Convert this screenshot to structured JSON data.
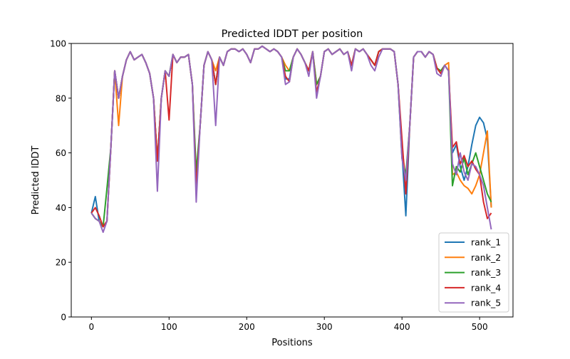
{
  "chart_data": {
    "type": "line",
    "title": "Predicted lDDT per position",
    "xlabel": "Positions",
    "ylabel": "Predicted lDDT",
    "xlim": [
      -26,
      543
    ],
    "ylim": [
      0,
      100
    ],
    "xticks": [
      0,
      100,
      200,
      300,
      400,
      500
    ],
    "yticks": [
      0,
      20,
      40,
      60,
      80,
      100
    ],
    "grid": false,
    "legend_position": "lower-right",
    "x_step": 5,
    "series": [
      {
        "name": "rank_1",
        "color": "#1f77b4",
        "values": [
          38,
          44,
          35,
          33,
          35,
          62,
          90,
          80,
          88,
          94,
          97,
          94,
          95,
          96,
          93,
          89,
          80,
          57,
          80,
          90,
          88,
          96,
          93,
          95,
          95,
          96,
          85,
          50,
          70,
          92,
          97,
          94,
          85,
          95,
          92,
          97,
          98,
          98,
          97,
          98,
          96,
          93,
          98,
          98,
          99,
          98,
          97,
          98,
          97,
          95,
          87,
          87,
          95,
          98,
          96,
          93,
          90,
          97,
          82,
          88,
          97,
          98,
          96,
          97,
          98,
          96,
          97,
          92,
          98,
          97,
          98,
          96,
          94,
          92,
          97,
          98,
          98,
          98,
          97,
          85,
          60,
          37,
          70,
          95,
          97,
          97,
          95,
          97,
          96,
          91,
          89,
          92,
          90,
          60,
          63,
          55,
          50,
          55,
          63,
          70,
          73,
          71,
          65,
          40
        ]
      },
      {
        "name": "rank_2",
        "color": "#ff7f0e",
        "values": [
          38,
          36,
          35,
          33,
          35,
          62,
          90,
          70,
          88,
          94,
          97,
          94,
          95,
          96,
          93,
          89,
          80,
          57,
          80,
          90,
          88,
          96,
          93,
          95,
          95,
          96,
          85,
          50,
          70,
          92,
          97,
          94,
          90,
          95,
          92,
          97,
          98,
          98,
          97,
          98,
          96,
          93,
          98,
          98,
          99,
          98,
          97,
          98,
          97,
          95,
          92,
          90,
          95,
          98,
          96,
          93,
          90,
          97,
          85,
          88,
          97,
          98,
          96,
          97,
          98,
          96,
          97,
          92,
          98,
          97,
          98,
          96,
          94,
          92,
          97,
          98,
          98,
          98,
          97,
          85,
          62,
          50,
          70,
          95,
          97,
          97,
          95,
          97,
          96,
          91,
          89,
          92,
          93,
          52,
          53,
          50,
          48,
          47,
          45,
          48,
          52,
          60,
          68,
          40
        ]
      },
      {
        "name": "rank_3",
        "color": "#2ca02c",
        "values": [
          38,
          36,
          35,
          33,
          47,
          62,
          90,
          80,
          88,
          94,
          97,
          94,
          95,
          96,
          93,
          89,
          80,
          57,
          80,
          90,
          88,
          96,
          93,
          95,
          95,
          96,
          85,
          53,
          70,
          92,
          97,
          94,
          85,
          95,
          92,
          97,
          98,
          98,
          97,
          98,
          96,
          93,
          98,
          98,
          99,
          98,
          97,
          98,
          97,
          95,
          90,
          90,
          95,
          98,
          96,
          93,
          90,
          97,
          85,
          88,
          97,
          98,
          96,
          97,
          98,
          96,
          97,
          92,
          98,
          97,
          98,
          96,
          94,
          92,
          97,
          98,
          98,
          98,
          97,
          85,
          58,
          52,
          70,
          95,
          97,
          97,
          95,
          97,
          96,
          91,
          90,
          92,
          90,
          48,
          55,
          53,
          58,
          52,
          56,
          60,
          55,
          50,
          45,
          42
        ]
      },
      {
        "name": "rank_4",
        "color": "#d62728",
        "values": [
          38,
          40,
          37,
          33,
          35,
          62,
          90,
          80,
          88,
          94,
          97,
          94,
          95,
          96,
          93,
          89,
          80,
          57,
          80,
          90,
          72,
          96,
          93,
          95,
          95,
          96,
          85,
          47,
          70,
          92,
          97,
          94,
          85,
          95,
          92,
          97,
          98,
          98,
          97,
          98,
          96,
          93,
          98,
          98,
          99,
          98,
          97,
          98,
          97,
          95,
          88,
          86,
          95,
          98,
          96,
          93,
          90,
          97,
          82,
          88,
          97,
          98,
          96,
          97,
          98,
          96,
          97,
          92,
          98,
          97,
          98,
          96,
          94,
          92,
          97,
          98,
          98,
          98,
          97,
          85,
          65,
          45,
          70,
          95,
          97,
          97,
          95,
          97,
          96,
          91,
          89,
          92,
          90,
          62,
          64,
          56,
          59,
          55,
          57,
          54,
          52,
          42,
          36,
          38
        ]
      },
      {
        "name": "rank_5",
        "color": "#9467bd",
        "values": [
          38,
          36,
          35,
          31,
          35,
          62,
          90,
          80,
          88,
          94,
          97,
          94,
          95,
          96,
          93,
          89,
          80,
          46,
          80,
          90,
          88,
          96,
          93,
          95,
          95,
          96,
          85,
          42,
          70,
          92,
          97,
          94,
          70,
          95,
          92,
          97,
          98,
          98,
          97,
          98,
          96,
          93,
          98,
          98,
          99,
          98,
          97,
          98,
          97,
          95,
          85,
          86,
          95,
          98,
          96,
          93,
          88,
          97,
          80,
          88,
          97,
          98,
          96,
          97,
          98,
          96,
          97,
          90,
          98,
          97,
          98,
          96,
          92,
          90,
          95,
          98,
          98,
          98,
          97,
          85,
          58,
          50,
          70,
          95,
          97,
          97,
          95,
          97,
          96,
          89,
          88,
          92,
          90,
          56,
          52,
          60,
          53,
          50,
          56,
          55,
          52,
          48,
          40,
          32
        ]
      }
    ]
  }
}
